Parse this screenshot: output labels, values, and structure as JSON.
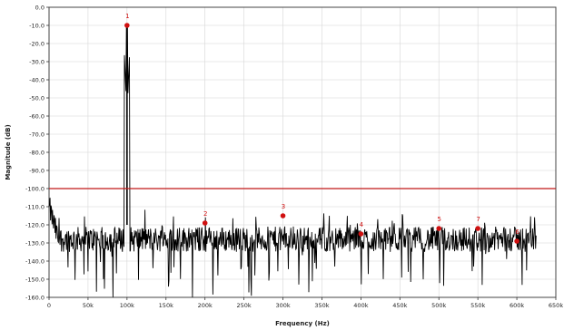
{
  "chart_data": {
    "type": "line",
    "xlabel": "Frequency (Hz)",
    "ylabel": "Magnitude (dB)",
    "xlim": [
      0,
      650000
    ],
    "ylim": [
      -160,
      0
    ],
    "grid": true,
    "x_ticks": [
      0,
      50000,
      100000,
      150000,
      200000,
      250000,
      300000,
      350000,
      400000,
      450000,
      500000,
      550000,
      600000,
      650000
    ],
    "x_tick_labels": [
      "0",
      "50k",
      "100k",
      "150k",
      "200k",
      "250k",
      "300k",
      "350k",
      "400k",
      "450k",
      "500k",
      "550k",
      "600k",
      "650k"
    ],
    "y_ticks": [
      0,
      -10,
      -20,
      -30,
      -40,
      -50,
      -60,
      -70,
      -80,
      -90,
      -100,
      -110,
      -120,
      -130,
      -140,
      -150,
      -160
    ],
    "y_tick_labels": [
      "0.0",
      "-10.0",
      "-20.0",
      "-30.0",
      "-40.0",
      "-50.0",
      "-60.0",
      "-70.0",
      "-80.0",
      "-90.0",
      "-100.0",
      "-110.0",
      "-120.0",
      "-130.0",
      "-140.0",
      "-150.0",
      "-160.0"
    ],
    "reference_line": {
      "y": -100,
      "color": "#c01818"
    },
    "series": [
      {
        "color": "#000000",
        "noise_floor_db": -128,
        "spectrum_start_hz": 0,
        "spectrum_end_hz": 625000,
        "spectrum_start_db": -110,
        "fundamental": {
          "x": 100000,
          "y": -10
        }
      }
    ],
    "markers": [
      {
        "label": "1",
        "x": 100000,
        "y": -10
      },
      {
        "label": "2",
        "x": 200000,
        "y": -119
      },
      {
        "label": "3",
        "x": 300000,
        "y": -115
      },
      {
        "label": "4",
        "x": 400000,
        "y": -125
      },
      {
        "label": "5",
        "x": 500000,
        "y": -122
      },
      {
        "label": "7",
        "x": 550000,
        "y": -122
      },
      {
        "label": "6",
        "x": 600000,
        "y": -129
      }
    ],
    "marker_color": "#d01010"
  }
}
